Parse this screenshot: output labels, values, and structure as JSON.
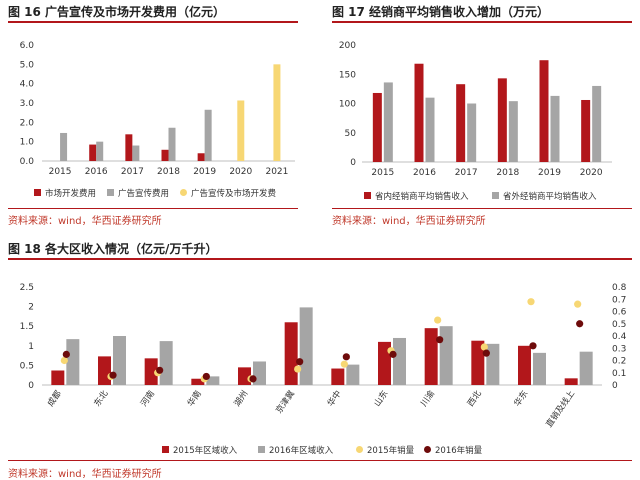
{
  "colors": {
    "red": "#b2171b",
    "gray": "#a5a5a5",
    "yellow": "#f7d774",
    "darkred": "#6e0b0b",
    "axis": "#bfbfbf"
  },
  "fig16": {
    "title": "图 16 广告宣传及市场开发费用（亿元）",
    "source": "资料来源：wind，华西证券研究所"
  },
  "fig17": {
    "title": "图 17 经销商平均销售收入增加（万元）",
    "source": "资料来源：wind，华西证券研究所"
  },
  "fig18": {
    "title": "图 18 各大区收入情况（亿元/万千升）",
    "source": "资料来源：wind，华西证券研究所"
  },
  "chart_data": [
    {
      "type": "bar",
      "categories": [
        "2015",
        "2016",
        "2017",
        "2018",
        "2019",
        "2020",
        "2021"
      ],
      "series": [
        {
          "name": "市场开发费用",
          "values": [
            null,
            0.85,
            1.38,
            0.58,
            0.4,
            null,
            null
          ]
        },
        {
          "name": "广告宣传费用",
          "values": [
            1.45,
            1.0,
            0.8,
            1.72,
            2.65,
            null,
            null
          ]
        },
        {
          "name": "广告宣传及市场开发费",
          "values": [
            null,
            null,
            null,
            null,
            null,
            3.13,
            5.0
          ]
        }
      ],
      "ylim": [
        0,
        6.0
      ],
      "yticks": [
        "0.0",
        "1.0",
        "2.0",
        "3.0",
        "4.0",
        "5.0",
        "6.0"
      ],
      "legend": "bottom"
    },
    {
      "type": "bar",
      "categories": [
        "2015",
        "2016",
        "2017",
        "2018",
        "2019",
        "2020"
      ],
      "series": [
        {
          "name": "省内经销商平均销售收入",
          "values": [
            118,
            168,
            133,
            143,
            174,
            106
          ]
        },
        {
          "name": "省外经销商平均销售收入",
          "values": [
            136,
            110,
            100,
            104,
            113,
            130
          ]
        }
      ],
      "ylim": [
        0,
        200
      ],
      "yticks": [
        "0",
        "50",
        "100",
        "150",
        "200"
      ],
      "legend": "bottom"
    },
    {
      "type": "bar",
      "categories": [
        "成都",
        "东北",
        "河南",
        "华南",
        "湖州",
        "京津冀",
        "华中",
        "山东",
        "川渝",
        "西北",
        "华东",
        "直销及线上"
      ],
      "series": [
        {
          "name": "2015年区域收入",
          "axis": "left",
          "values": [
            0.37,
            0.73,
            0.68,
            0.16,
            0.45,
            1.6,
            0.42,
            1.1,
            1.45,
            1.13,
            1.0,
            0.17
          ]
        },
        {
          "name": "2016年区域收入",
          "axis": "left",
          "values": [
            1.17,
            1.25,
            1.12,
            0.22,
            0.6,
            1.98,
            0.52,
            1.2,
            1.5,
            1.05,
            0.82,
            0.85
          ]
        },
        {
          "name": "2015年销量",
          "axis": "right",
          "values": [
            0.2,
            0.07,
            0.1,
            0.05,
            0.05,
            0.13,
            0.17,
            0.28,
            0.53,
            0.31,
            0.68,
            0.66
          ]
        },
        {
          "name": "2016年销量",
          "axis": "right",
          "values": [
            0.25,
            0.08,
            0.12,
            0.07,
            0.05,
            0.19,
            0.23,
            0.25,
            0.37,
            0.26,
            0.32,
            0.5
          ]
        }
      ],
      "ylim": [
        0,
        2.5
      ],
      "yticks": [
        "0",
        "0.5",
        "1",
        "1.5",
        "2",
        "2.5"
      ],
      "y2lim": [
        0,
        0.8
      ],
      "y2ticks": [
        "0",
        "0.1",
        "0.2",
        "0.3",
        "0.4",
        "0.5",
        "0.6",
        "0.7",
        "0.8"
      ],
      "legend": "bottom"
    }
  ]
}
